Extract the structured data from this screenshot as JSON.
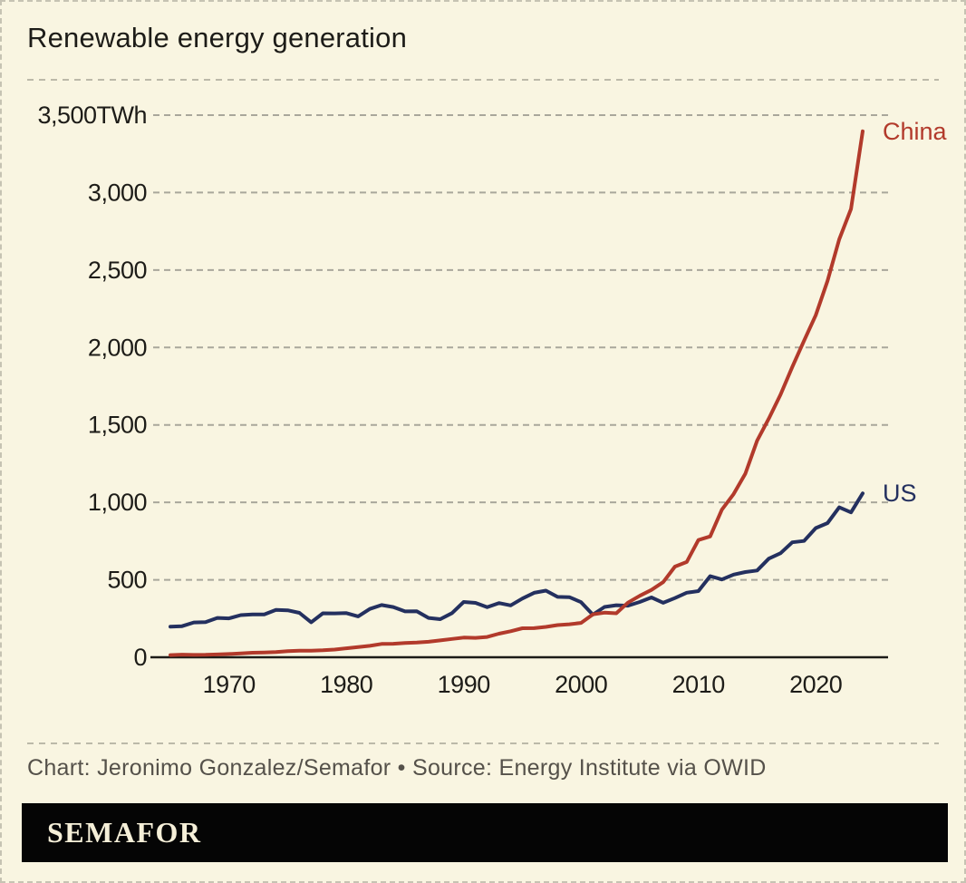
{
  "header": {
    "title": "Renewable energy generation"
  },
  "footer": {
    "credit": "Chart: Jeronimo Gonzalez/Semafor • Source: Energy Institute via OWID",
    "brand": "SEMAFOR"
  },
  "colors": {
    "background": "#f9f5e1",
    "china": "#b23a2b",
    "us": "#24305f",
    "grid": "#a9a79b",
    "axis": "#1c1b17",
    "text": "#1d1c18",
    "muted_text": "#55514a",
    "banner_bg": "#050505",
    "banner_text": "#f5efd8",
    "border": "#c6c3b3"
  },
  "chart_data": {
    "type": "line",
    "title": "Renewable energy generation",
    "unit": "TWh",
    "ylim": [
      0,
      3500
    ],
    "yticks": [
      0,
      500,
      1000,
      1500,
      2000,
      2500,
      3000,
      3500
    ],
    "ytick_top_label": "3,500TWh",
    "xticks": [
      1970,
      1980,
      1990,
      2000,
      2010,
      2020
    ],
    "grid": "horizontal-dashed",
    "legend_position": "line-end-labels",
    "x": [
      1965,
      1966,
      1967,
      1968,
      1969,
      1970,
      1971,
      1972,
      1973,
      1974,
      1975,
      1976,
      1977,
      1978,
      1979,
      1980,
      1981,
      1982,
      1983,
      1984,
      1985,
      1986,
      1987,
      1988,
      1989,
      1990,
      1991,
      1992,
      1993,
      1994,
      1995,
      1996,
      1997,
      1998,
      1999,
      2000,
      2001,
      2002,
      2003,
      2004,
      2005,
      2006,
      2007,
      2008,
      2009,
      2010,
      2011,
      2012,
      2013,
      2014,
      2015,
      2016,
      2017,
      2018,
      2019,
      2020,
      2021,
      2022,
      2023,
      2024
    ],
    "series": [
      {
        "name": "China",
        "color": "#b23a2b",
        "values": [
          14,
          17,
          15,
          16,
          18,
          21,
          25,
          29,
          31,
          34,
          39,
          43,
          42,
          45,
          50,
          58,
          66,
          74,
          86,
          87,
          92,
          95,
          100,
          109,
          118,
          127,
          125,
          131,
          152,
          168,
          187,
          188,
          196,
          208,
          213,
          222,
          277,
          288,
          284,
          353,
          397,
          435,
          485,
          585,
          615,
          757,
          780,
          953,
          1054,
          1185,
          1398,
          1541,
          1697,
          1874,
          2044,
          2208,
          2430,
          2698,
          2894,
          3396
        ]
      },
      {
        "name": "US",
        "color": "#24305f",
        "values": [
          197,
          201,
          225,
          227,
          254,
          251,
          272,
          277,
          277,
          306,
          303,
          287,
          226,
          284,
          283,
          285,
          264,
          312,
          337,
          324,
          296,
          297,
          254,
          246,
          285,
          357,
          351,
          323,
          350,
          335,
          379,
          416,
          430,
          390,
          388,
          356,
          275,
          325,
          336,
          333,
          357,
          386,
          352,
          382,
          417,
          427,
          524,
          502,
          534,
          550,
          560,
          637,
          672,
          742,
          751,
          834,
          866,
          968,
          935,
          1058
        ]
      }
    ]
  }
}
